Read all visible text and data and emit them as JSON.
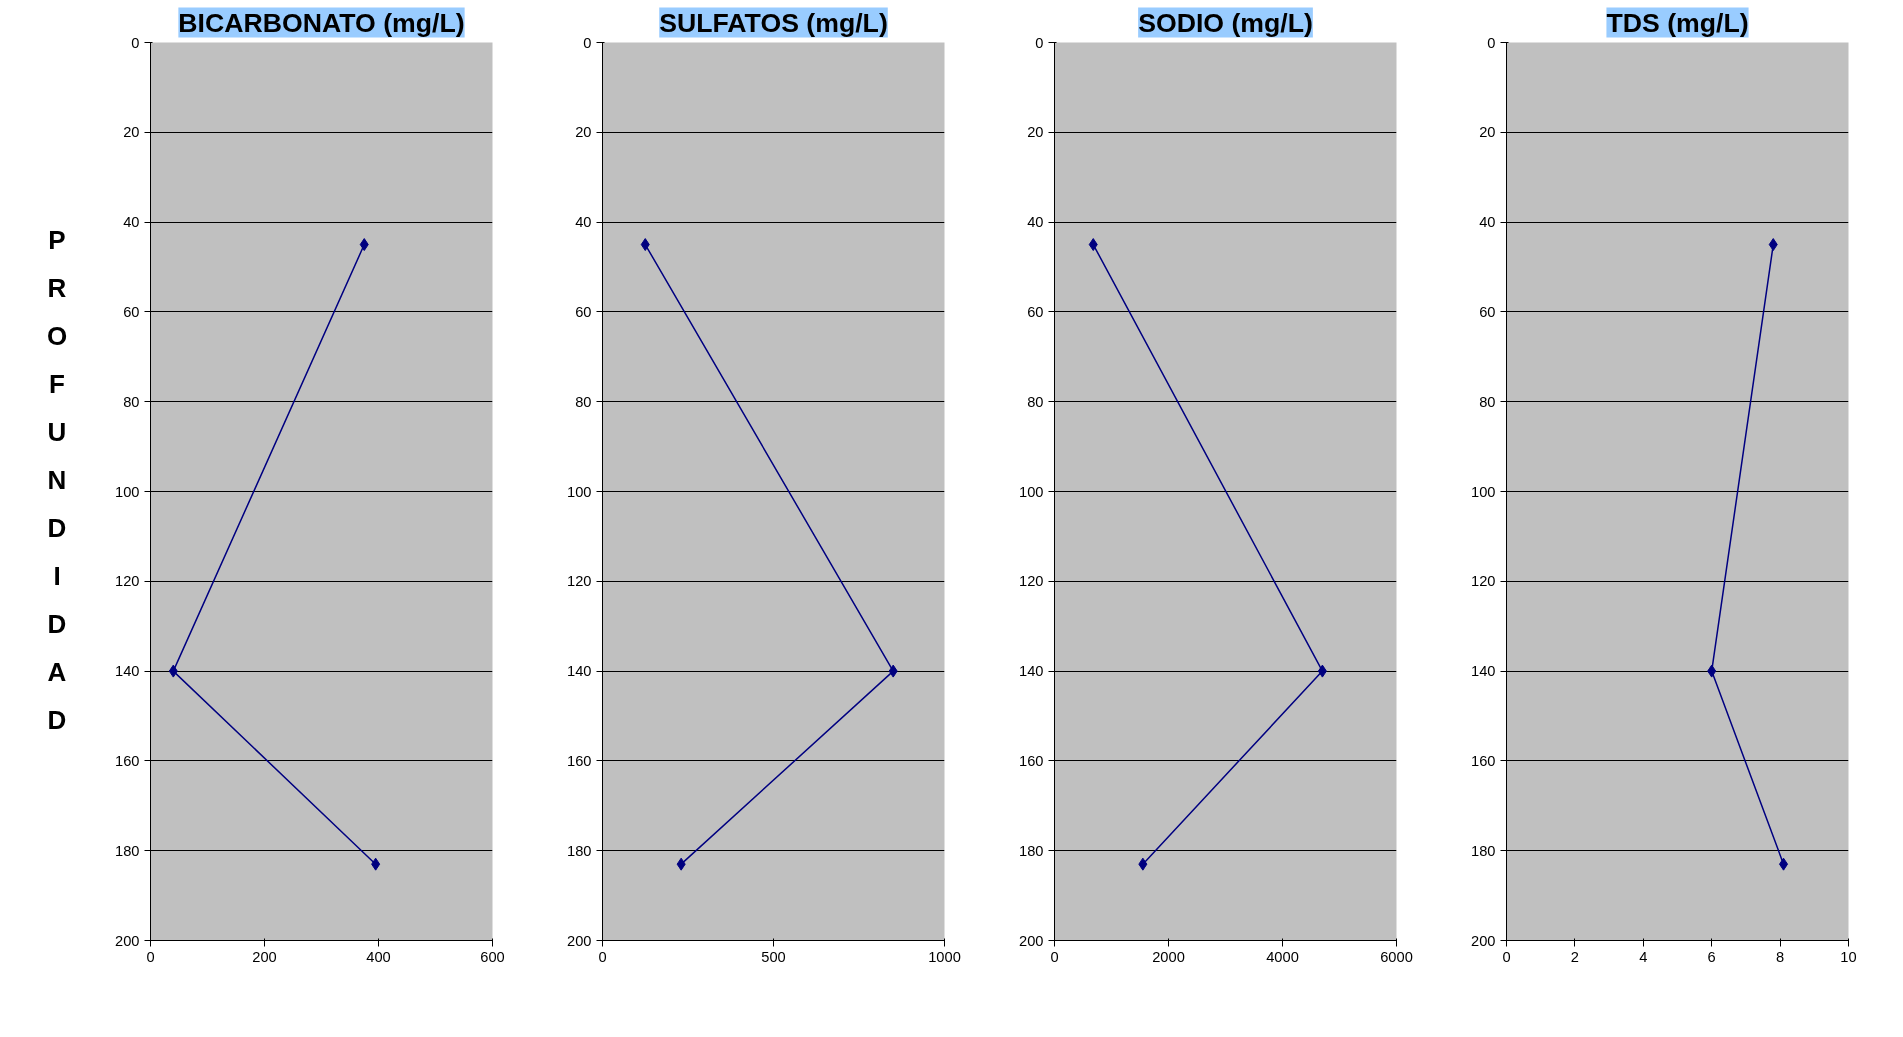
{
  "chart_data": [
    {
      "type": "line",
      "title": "BICARBONATO (mg/L)",
      "ylabel": "PROFUNDIDAD",
      "series": [
        {
          "color": "#000080",
          "x": [
            375,
            40,
            395
          ],
          "values": [
            45,
            140,
            183
          ]
        }
      ],
      "xlim": [
        0,
        600
      ],
      "xticks": [
        0,
        200,
        400,
        600
      ],
      "ylim": [
        200,
        0
      ],
      "yticks": [
        0,
        20,
        40,
        60,
        80,
        100,
        120,
        140,
        160,
        180,
        200
      ],
      "grid": "y",
      "marker": "diamond",
      "line_style": "solid"
    },
    {
      "type": "line",
      "title": "SULFATOS (mg/L)",
      "series": [
        {
          "color": "#000080",
          "x": [
            125,
            850,
            230
          ],
          "values": [
            45,
            140,
            183
          ]
        }
      ],
      "xlim": [
        0,
        1000
      ],
      "xticks": [
        0,
        500,
        1000
      ],
      "ylim": [
        200,
        0
      ],
      "yticks": [
        0,
        20,
        40,
        60,
        80,
        100,
        120,
        140,
        160,
        180,
        200
      ],
      "grid": "y",
      "marker": "diamond",
      "line_style": "solid"
    },
    {
      "type": "line",
      "title": "SODIO (mg/L)",
      "series": [
        {
          "color": "#000080",
          "x": [
            680,
            4700,
            1550
          ],
          "values": [
            45,
            140,
            183
          ]
        }
      ],
      "xlim": [
        0,
        6000
      ],
      "xticks": [
        0,
        2000,
        4000,
        6000
      ],
      "ylim": [
        200,
        0
      ],
      "yticks": [
        0,
        20,
        40,
        60,
        80,
        100,
        120,
        140,
        160,
        180,
        200
      ],
      "grid": "y",
      "marker": "diamond",
      "line_style": "solid"
    },
    {
      "type": "line",
      "title": "TDS (mg/L)",
      "series": [
        {
          "color": "#000080",
          "x": [
            7.8,
            6,
            8.1
          ],
          "values": [
            45,
            140,
            183
          ]
        }
      ],
      "xlim": [
        0,
        10
      ],
      "xticks": [
        0,
        2,
        4,
        6,
        8,
        10
      ],
      "ylim": [
        200,
        0
      ],
      "yticks": [
        0,
        20,
        40,
        60,
        80,
        100,
        120,
        140,
        160,
        180,
        200
      ],
      "grid": "y",
      "marker": "diamond",
      "line_style": "solid"
    }
  ]
}
